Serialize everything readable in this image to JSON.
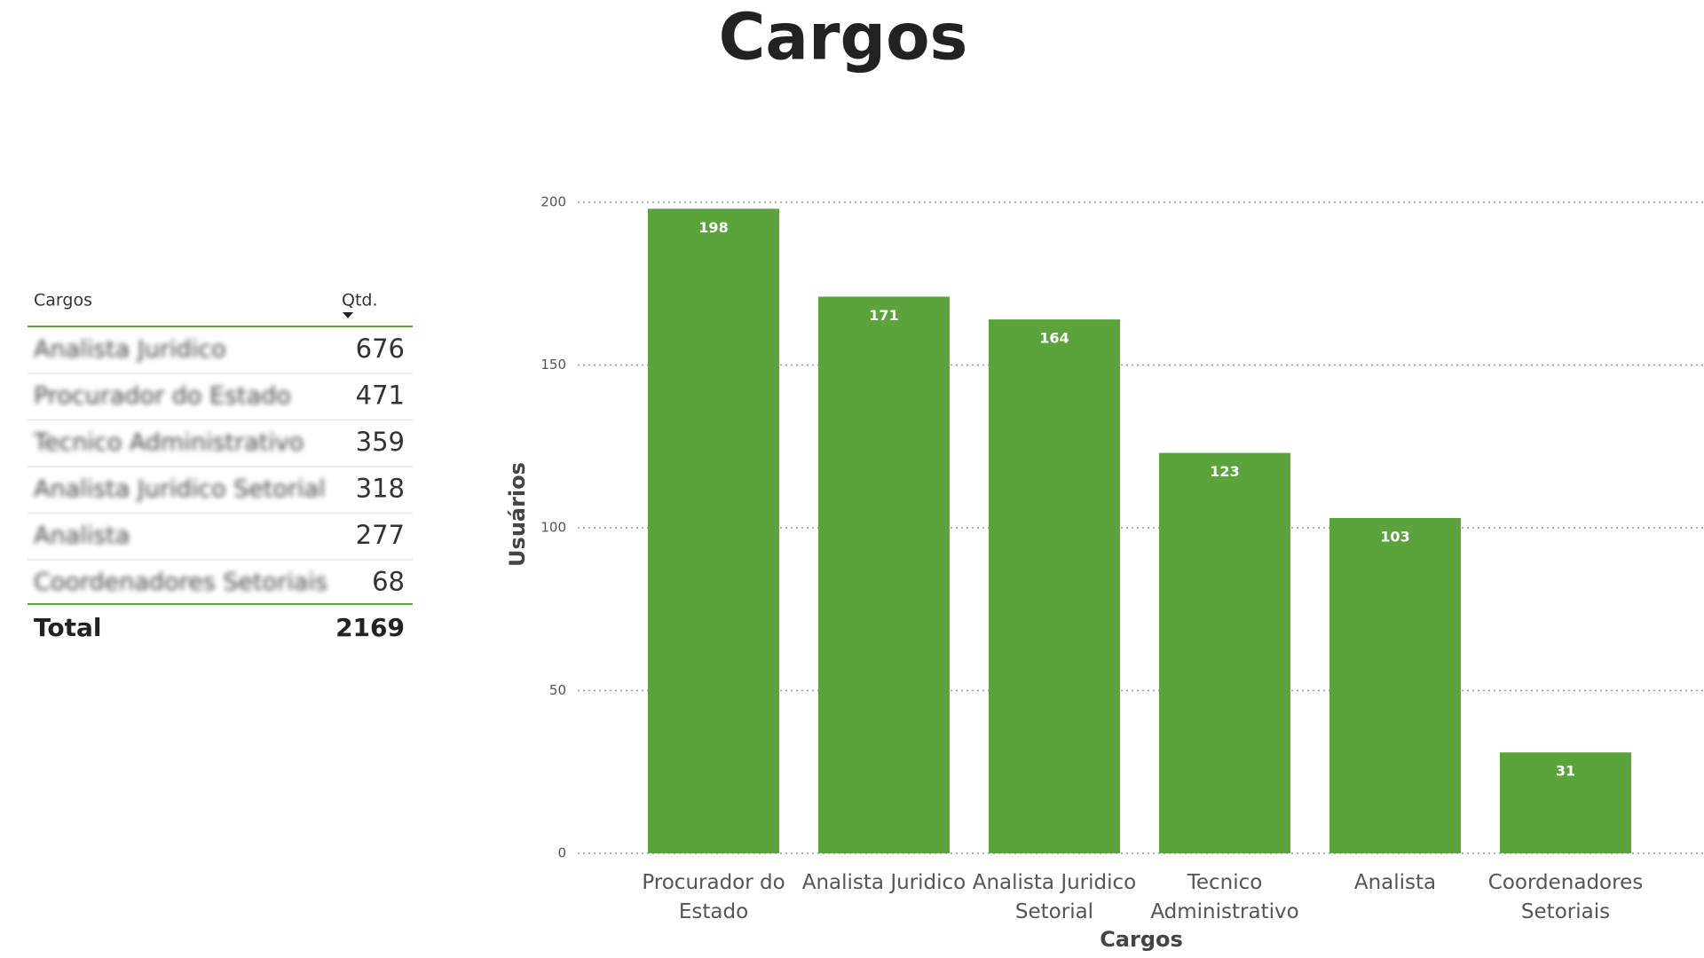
{
  "title": "Cargos",
  "table": {
    "headers": [
      "Cargos",
      "Qtd."
    ],
    "rows": [
      [
        "Analista Juridico",
        "676"
      ],
      [
        "Procurador do Estado",
        "471"
      ],
      [
        "Tecnico Administrativo",
        "359"
      ],
      [
        "Analista Juridico Setorial",
        "318"
      ],
      [
        "Analista",
        "277"
      ],
      [
        "Coordenadores Setoriais",
        "68"
      ]
    ],
    "total": [
      "Total",
      "2169"
    ]
  },
  "chart_data": {
    "type": "bar",
    "categories": [
      "Procurador do Estado",
      "Analista Juridico",
      "Analista Juridico Setorial",
      "Tecnico Administrativo",
      "Analista",
      "Coordenadores Setoriais"
    ],
    "values": [
      198,
      171,
      164,
      123,
      103,
      31
    ],
    "color": "#5ba33b",
    "ylim": [
      0,
      200
    ],
    "yticks": [
      0,
      50,
      100,
      150,
      200
    ],
    "grid": true,
    "xlabel": "Cargos",
    "ylabel": "Usuários"
  }
}
